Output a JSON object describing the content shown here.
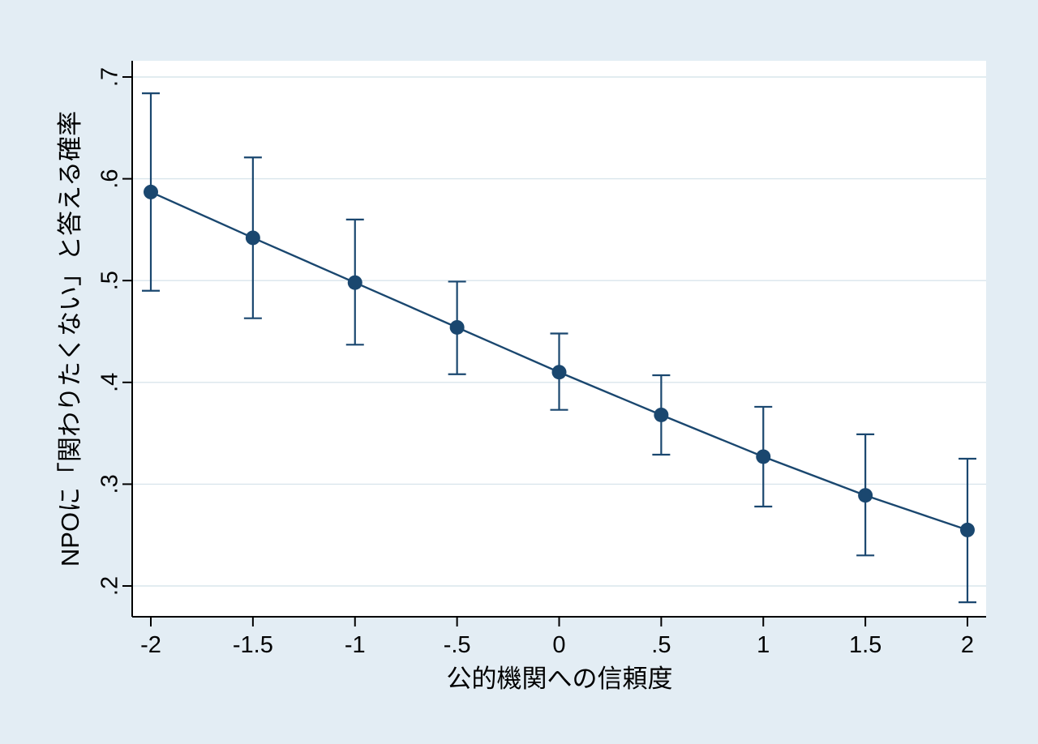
{
  "chart_data": {
    "type": "line",
    "title": "",
    "xlabel": "公的機関への信頼度",
    "ylabel": "NPOに「関わりたくない」と答える確率",
    "x": [
      -2,
      -1.5,
      -1,
      -0.5,
      0,
      0.5,
      1,
      1.5,
      2
    ],
    "y": [
      0.587,
      0.542,
      0.498,
      0.454,
      0.41,
      0.368,
      0.327,
      0.289,
      0.255
    ],
    "ci_lower": [
      0.49,
      0.463,
      0.437,
      0.408,
      0.373,
      0.329,
      0.278,
      0.23,
      0.184
    ],
    "ci_upper": [
      0.684,
      0.621,
      0.56,
      0.499,
      0.448,
      0.407,
      0.376,
      0.349,
      0.325
    ],
    "xlim": [
      -2,
      2
    ],
    "ylim": [
      0.2,
      0.7
    ],
    "xticks": [
      -2,
      -1.5,
      -1,
      -0.5,
      0,
      0.5,
      1,
      1.5,
      2
    ],
    "xtick_labels": [
      "-2",
      "-1.5",
      "-1",
      "-.5",
      "0",
      ".5",
      "1",
      "1.5",
      "2"
    ],
    "yticks": [
      0.2,
      0.3,
      0.4,
      0.5,
      0.6,
      0.7
    ],
    "ytick_labels": [
      ".2",
      ".3",
      ".4",
      ".5",
      ".6",
      ".7"
    ],
    "grid": true,
    "legend": false,
    "error_bars": true,
    "colors": {
      "line": "#1a476f",
      "marker": "#1a476f",
      "ci": "#1a476f",
      "background": "#e3edf4",
      "plot_background": "#ffffff",
      "gridline": "#d9e5ec",
      "axis": "#000000"
    }
  }
}
